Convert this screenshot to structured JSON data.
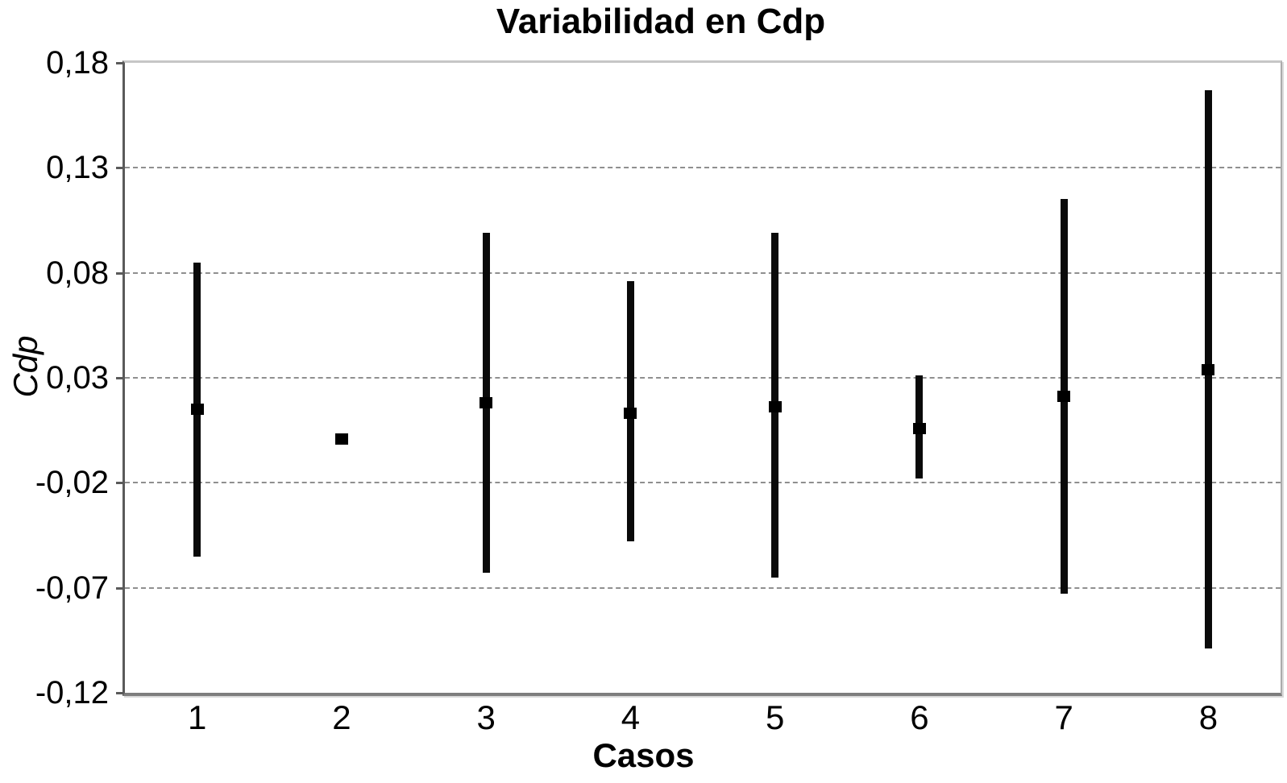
{
  "page": {
    "background": "#ffffff"
  },
  "chart_data": {
    "type": "scatter",
    "subtype": "mean-markers-with-min-max-range-bars",
    "title": "Variabilidad en Cdp",
    "xlabel": "Casos",
    "ylabel": "Cdp",
    "decimal_separator": ",",
    "categories": [
      "1",
      "2",
      "3",
      "4",
      "5",
      "6",
      "7",
      "8"
    ],
    "series": [
      {
        "name": "Cdp",
        "points": [
          {
            "case": "1",
            "mean": 0.015,
            "min": -0.055,
            "max": 0.085
          },
          {
            "case": "2",
            "mean": 0.001,
            "min": null,
            "max": null
          },
          {
            "case": "3",
            "mean": 0.018,
            "min": -0.063,
            "max": 0.099
          },
          {
            "case": "4",
            "mean": 0.013,
            "min": -0.048,
            "max": 0.076
          },
          {
            "case": "5",
            "mean": 0.016,
            "min": -0.065,
            "max": 0.099
          },
          {
            "case": "6",
            "mean": 0.006,
            "min": -0.018,
            "max": 0.031
          },
          {
            "case": "7",
            "mean": 0.021,
            "min": -0.073,
            "max": 0.115
          },
          {
            "case": "8",
            "mean": 0.034,
            "min": -0.099,
            "max": 0.167
          }
        ]
      }
    ],
    "ylim": [
      -0.12,
      0.18
    ],
    "yticks": [
      {
        "label": "0,18",
        "value": 0.18
      },
      {
        "label": "0,13",
        "value": 0.13
      },
      {
        "label": "0,08",
        "value": 0.08
      },
      {
        "label": "0,03",
        "value": 0.03
      },
      {
        "label": "-0,02",
        "value": -0.02
      },
      {
        "label": "-0,07",
        "value": -0.07
      },
      {
        "label": "-0,12",
        "value": -0.12
      }
    ],
    "grid": {
      "horizontal": true,
      "vertical": false,
      "style": "dashed",
      "color": "#8f8f8f"
    },
    "legend": "none",
    "colors": {
      "bar": "#0a0a0a",
      "marker": "#000000",
      "grid": "#8f8f8f",
      "axis": "#5a5a5a",
      "text": "#000000"
    }
  }
}
